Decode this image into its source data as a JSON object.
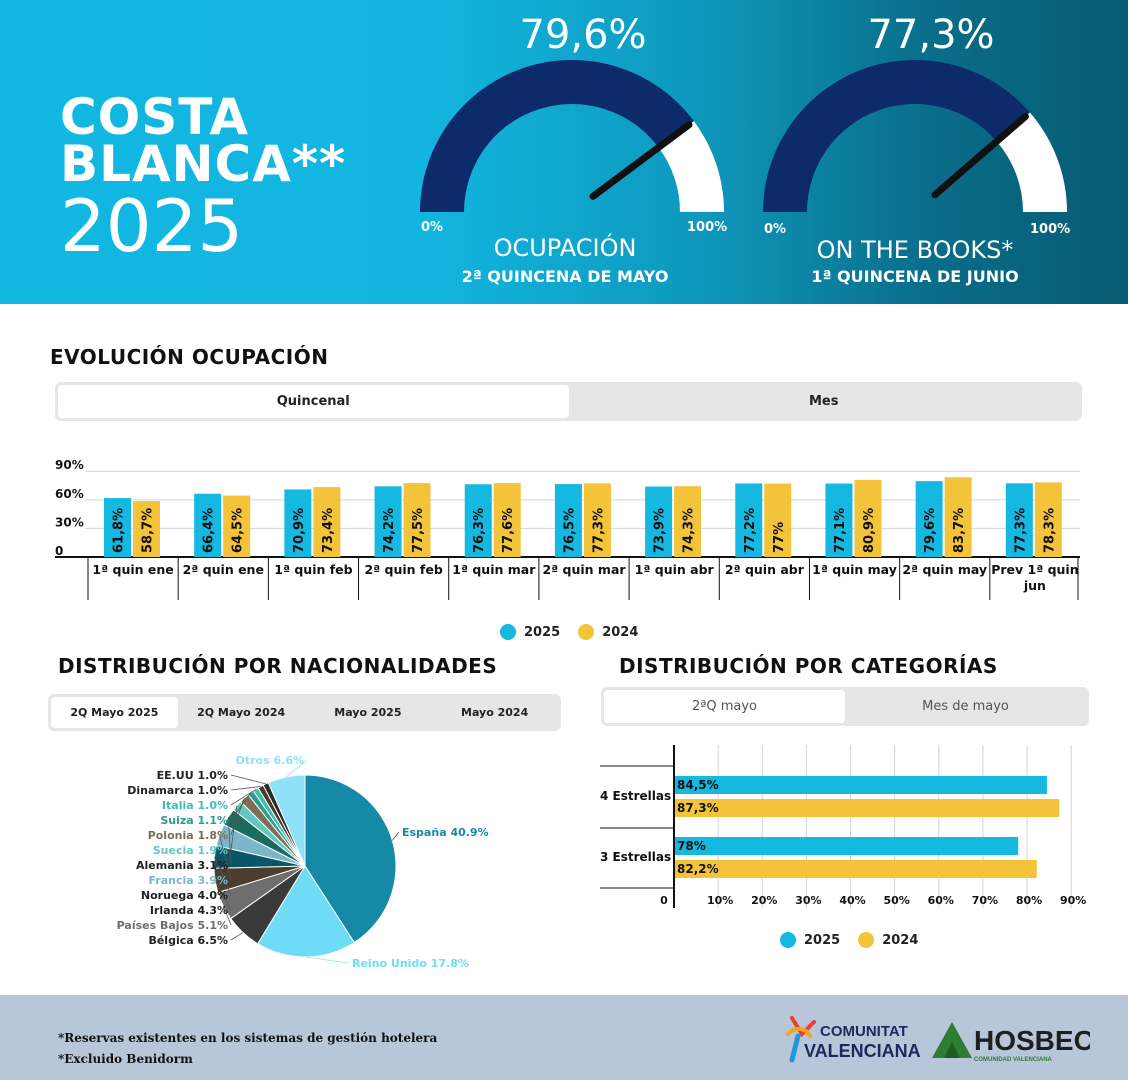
{
  "header": {
    "brand_line1": "COSTA",
    "brand_line2": "BLANCA**",
    "brand_year": "2025",
    "gauges": [
      {
        "value_label": "79,6%",
        "value": 79.6,
        "min_label": "0%",
        "max_label": "100%",
        "title": "OCUPACIÓN",
        "subtitle": "2ª QUINCENA DE MAYO"
      },
      {
        "value_label": "77,3%",
        "value": 77.3,
        "min_label": "0%",
        "max_label": "100%",
        "title": "ON THE BOOKS*",
        "subtitle": "1ª QUINCENA DE JUNIO"
      }
    ],
    "colors": {
      "gauge_fill": "#0d2b6b",
      "gauge_rest": "#ffffff",
      "needle": "#111111"
    }
  },
  "evolucion": {
    "title": "EVOLUCIÓN OCUPACIÓN",
    "tabs": [
      "Quincenal",
      "Mes"
    ],
    "active_tab": "Quincenal"
  },
  "nacionalidades": {
    "title": "DISTRIBUCIÓN POR NACIONALIDADES",
    "tabs": [
      "2Q Mayo 2025",
      "2Q Mayo 2024",
      "Mayo 2025",
      "Mayo 2024"
    ],
    "active_tab": "2Q Mayo 2025"
  },
  "categorias": {
    "title": "DISTRIBUCIÓN POR CATEGORÍAS",
    "tabs": [
      "2ªQ mayo",
      "Mes de mayo"
    ],
    "active_tab": "2ªQ mayo"
  },
  "footer": {
    "note1": "*Reservas existentes en los sistemas de gestión hotelera",
    "note2": "*Excluido Benidorm",
    "logo1_line1": "COMUNITAT",
    "logo1_line2": "VALENCIANA",
    "logo2_text": "HOSBEC",
    "logo2_sub": "COMUNIDAD VALENCIANA"
  },
  "chart_data": [
    {
      "type": "bar",
      "categories": [
        "1ª quin ene",
        "2ª quin ene",
        "1ª quin feb",
        "2ª quin feb",
        "1ª quin mar",
        "2ª quin mar",
        "1ª quin abr",
        "2ª quin abr",
        "1ª quin may",
        "2ª quin may",
        "Prev 1ª quin jun"
      ],
      "series": [
        {
          "name": "2025",
          "color": "#14b8e0",
          "values": [
            61.8,
            66.4,
            70.9,
            74.2,
            76.3,
            76.5,
            73.9,
            77.2,
            77.1,
            79.6,
            77.3
          ],
          "labels": [
            "61,8%",
            "66,4%",
            "70,9%",
            "74,2%",
            "76,3%",
            "76,5%",
            "73,9%",
            "77,2%",
            "77,1%",
            "79,6%",
            "77,3%"
          ]
        },
        {
          "name": "2024",
          "color": "#f3c43a",
          "values": [
            58.7,
            64.5,
            73.4,
            77.5,
            77.6,
            77.3,
            74.3,
            77,
            80.9,
            83.7,
            78.3
          ],
          "labels": [
            "58,7%",
            "64,5%",
            "73,4%",
            "77,5%",
            "77,6%",
            "77,3%",
            "74,3%",
            "77%",
            "80,9%",
            "83,7%",
            "78,3%"
          ]
        }
      ],
      "y_ticks": [
        "0",
        "30%",
        "60%",
        "90%"
      ],
      "ylim": [
        0,
        100
      ],
      "grid": true,
      "legend": "bottom"
    },
    {
      "type": "pie",
      "slices": [
        {
          "label": "España",
          "value": 40.9,
          "text": "España 40.9%",
          "color": "#1589a6"
        },
        {
          "label": "Reino Unido",
          "value": 17.8,
          "text": "Reino Unido 17.8%",
          "color": "#6fdcf7"
        },
        {
          "label": "Bélgica",
          "value": 6.5,
          "text": "Bélgica 6.5%",
          "color": "#3a3a3a"
        },
        {
          "label": "Países Bajos",
          "value": 5.1,
          "text": "Países Bajos 5.1%",
          "color": "#6e6e6e"
        },
        {
          "label": "Irlanda",
          "value": 4.3,
          "text": "Irlanda 4.3%",
          "color": "#4a3f2c"
        },
        {
          "label": "Noruega",
          "value": 4.0,
          "text": "Noruega 4.0%",
          "color": "#0c5566"
        },
        {
          "label": "Francia",
          "value": 3.9,
          "text": "Francia 3.9%",
          "color": "#7ab6c8"
        },
        {
          "label": "Alemania",
          "value": 3.1,
          "text": "Alemania 3.1%",
          "color": "#1d6b5e"
        },
        {
          "label": "Suecia",
          "value": 1.9,
          "text": "Suecia 1.9%",
          "color": "#5fc9c0"
        },
        {
          "label": "Polonia",
          "value": 1.8,
          "text": "Polonia 1.8%",
          "color": "#7d6e5a"
        },
        {
          "label": "Suiza",
          "value": 1.1,
          "text": "Suiza 1.1%",
          "color": "#2e9c8a"
        },
        {
          "label": "Italia",
          "value": 1.0,
          "text": "Italia 1.0%",
          "color": "#3fbfae"
        },
        {
          "label": "Dinamarca",
          "value": 1.0,
          "text": "Dinamarca 1.0%",
          "color": "#4b3a25"
        },
        {
          "label": "EE.UU",
          "value": 1.0,
          "text": "EE.UU 1.0%",
          "color": "#2b2b2b"
        },
        {
          "label": "Otros",
          "value": 6.6,
          "text": "Otros 6.6%",
          "color": "#8fe1f7"
        }
      ]
    },
    {
      "type": "bar",
      "orientation": "horizontal",
      "categories": [
        "4 Estrellas",
        "3 Estrellas"
      ],
      "series": [
        {
          "name": "2025",
          "color": "#14b8e0",
          "values": [
            84.5,
            78
          ],
          "labels": [
            "84,5%",
            "78%"
          ]
        },
        {
          "name": "2024",
          "color": "#f3c43a",
          "values": [
            87.3,
            82.2
          ],
          "labels": [
            "87,3%",
            "82,2%"
          ]
        }
      ],
      "x_ticks": [
        "0",
        "10%",
        "20%",
        "30%",
        "40%",
        "50%",
        "60%",
        "70%",
        "80%",
        "90%"
      ],
      "xlim": [
        0,
        90
      ],
      "grid": true,
      "legend": "bottom"
    }
  ]
}
